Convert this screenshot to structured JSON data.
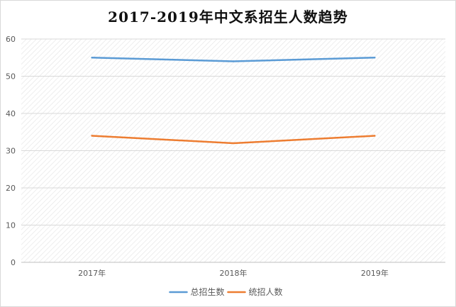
{
  "chart_data": {
    "type": "line",
    "title": "2017-2019年中文系招生人数趋势",
    "xlabel": "",
    "ylabel": "",
    "categories": [
      "2017年",
      "2018年",
      "2019年"
    ],
    "series": [
      {
        "name": "总招生数",
        "values": [
          55,
          54,
          55
        ],
        "color": "#5b9bd5"
      },
      {
        "name": "统招人数",
        "values": [
          34,
          32,
          34
        ],
        "color": "#ed7d31"
      }
    ],
    "ylim": [
      0,
      60
    ],
    "yticks": [
      0,
      10,
      20,
      30,
      40,
      50,
      60
    ],
    "grid": true,
    "legend": "bottom"
  }
}
